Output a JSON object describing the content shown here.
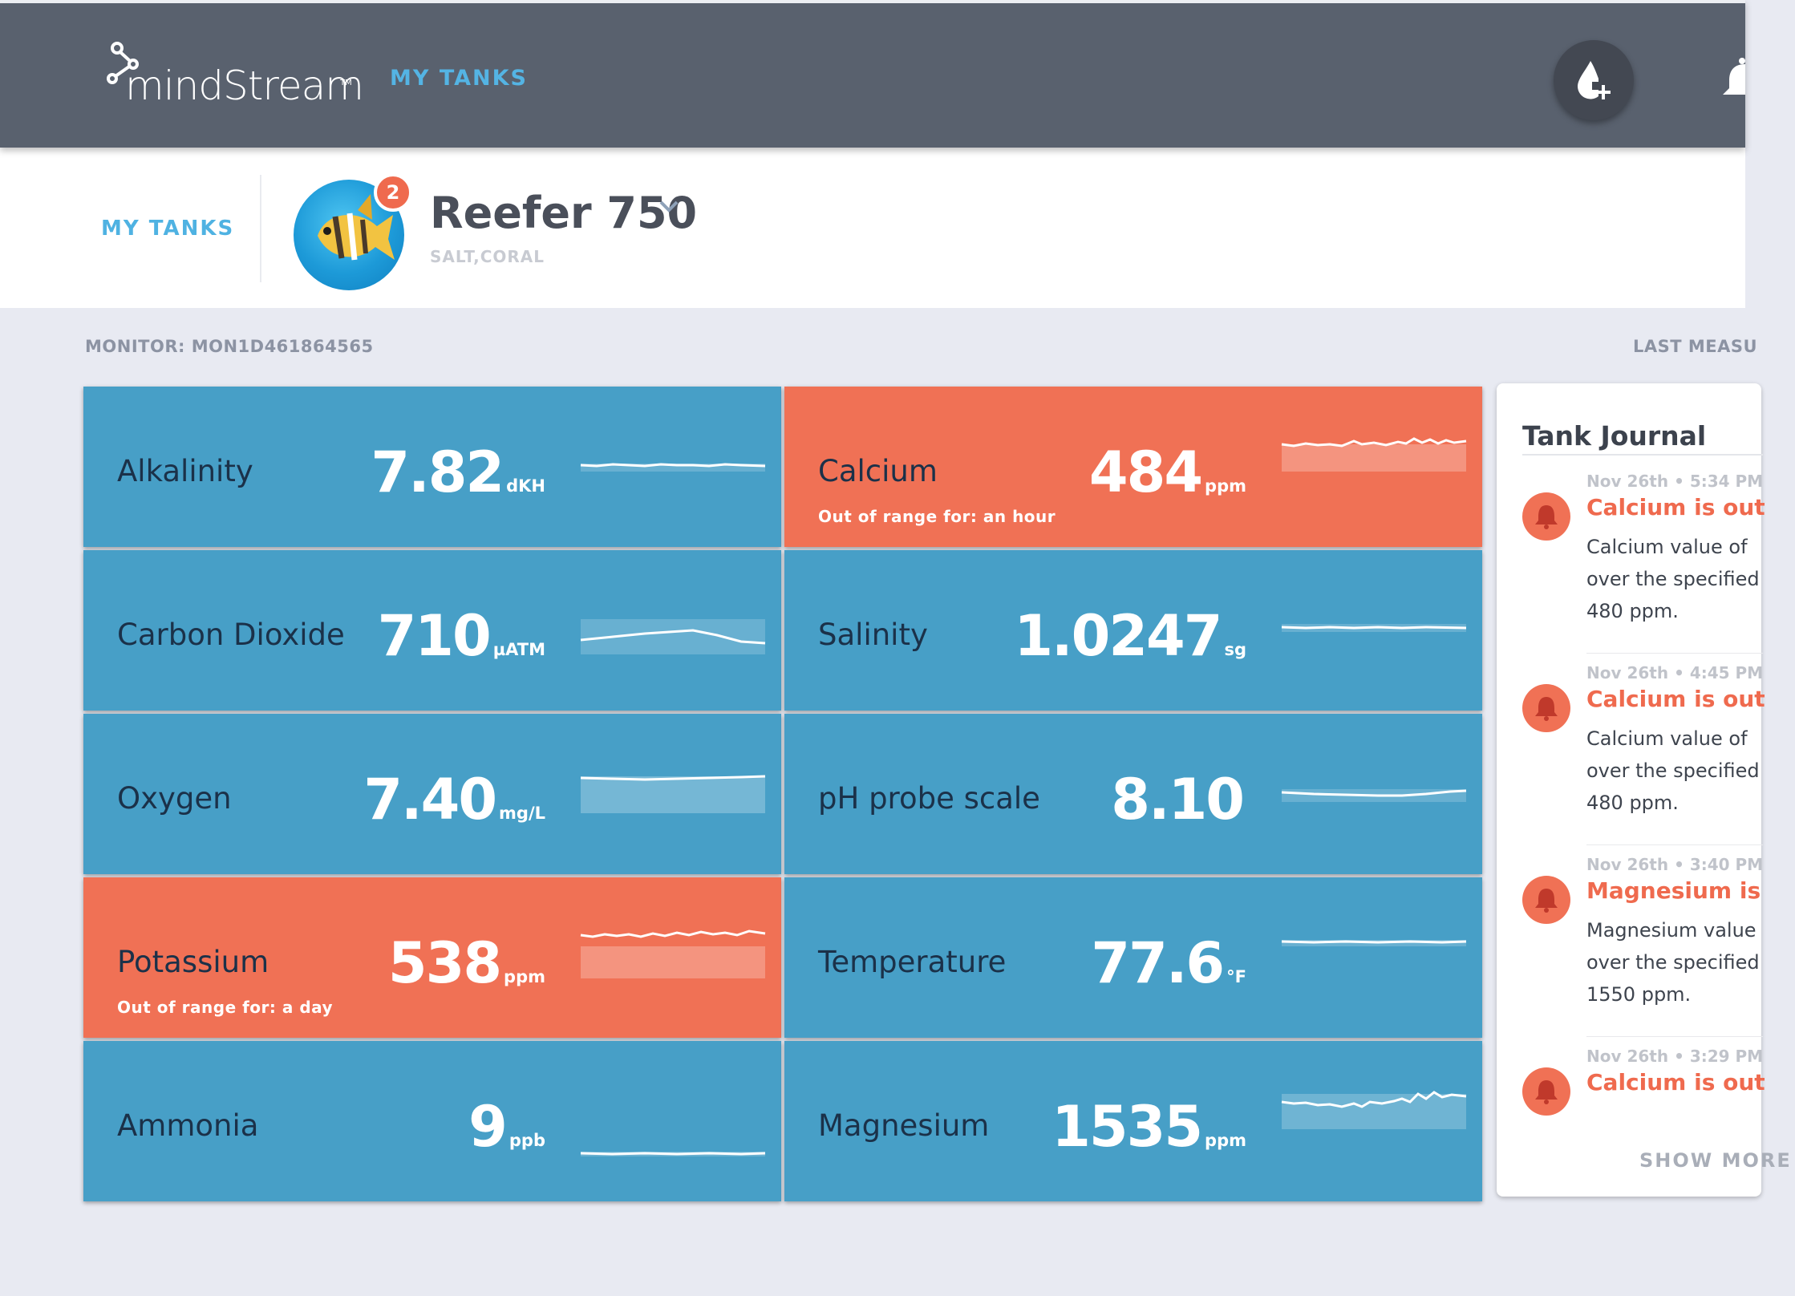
{
  "header": {
    "brand": "mindStream",
    "brand_tm": "TM",
    "nav_label": "MY TANKS",
    "add_dose_icon": "water-drop-plus-icon",
    "notifications_icon": "bell-icon"
  },
  "tank_bar": {
    "back_label": "MY TANKS",
    "tank_name": "Reefer 750",
    "tank_type": "SALT,CORAL",
    "badge_count": "2",
    "avatar_icon": "fish-icon"
  },
  "monitor": {
    "label": "MONITOR: MON1D461864565",
    "last_label": "LAST MEASU"
  },
  "colors": {
    "tile_normal": "#479fc7",
    "tile_alert": "#f07155",
    "accent_blue": "#54b4e4",
    "header_bg": "#59616e"
  },
  "tiles": [
    {
      "name": "Alkalinity",
      "value": "7.82",
      "unit": "dKH",
      "status": "normal",
      "out_of_range": ""
    },
    {
      "name": "Calcium",
      "value": "484",
      "unit": "ppm",
      "status": "alert",
      "out_of_range": "Out of range for: an hour"
    },
    {
      "name": "Carbon Dioxide",
      "value": "710",
      "unit": "µATM",
      "status": "normal",
      "out_of_range": ""
    },
    {
      "name": "Salinity",
      "value": "1.0247",
      "unit": "sg",
      "status": "normal",
      "out_of_range": ""
    },
    {
      "name": "Oxygen",
      "value": "7.40",
      "unit": "mg/L",
      "status": "normal",
      "out_of_range": ""
    },
    {
      "name": "pH probe scale",
      "value": "8.10",
      "unit": "",
      "status": "normal",
      "out_of_range": ""
    },
    {
      "name": "Potassium",
      "value": "538",
      "unit": "ppm",
      "status": "alert",
      "out_of_range": "Out of range for: a day"
    },
    {
      "name": "Temperature",
      "value": "77.6",
      "unit": "°F",
      "status": "normal",
      "out_of_range": ""
    },
    {
      "name": "Ammonia",
      "value": "9",
      "unit": "ppb",
      "status": "normal",
      "out_of_range": ""
    },
    {
      "name": "Magnesium",
      "value": "1535",
      "unit": "ppm",
      "status": "normal",
      "out_of_range": ""
    }
  ],
  "journal": {
    "title": "Tank Journal",
    "entries": [
      {
        "time": "Nov 26th • 5:34 PM",
        "title": "Calcium is out",
        "body": "Calcium value of over the specified 480 ppm."
      },
      {
        "time": "Nov 26th • 4:45 PM",
        "title": "Calcium is out",
        "body": "Calcium value of over the specified 480 ppm."
      },
      {
        "time": "Nov 26th • 3:40 PM",
        "title": "Magnesium is",
        "body": "Magnesium value over the specified 1550 ppm."
      },
      {
        "time": "Nov 26th • 3:29 PM",
        "title": "Calcium is out",
        "body": ""
      }
    ],
    "show_more": "SHOW MORE"
  }
}
